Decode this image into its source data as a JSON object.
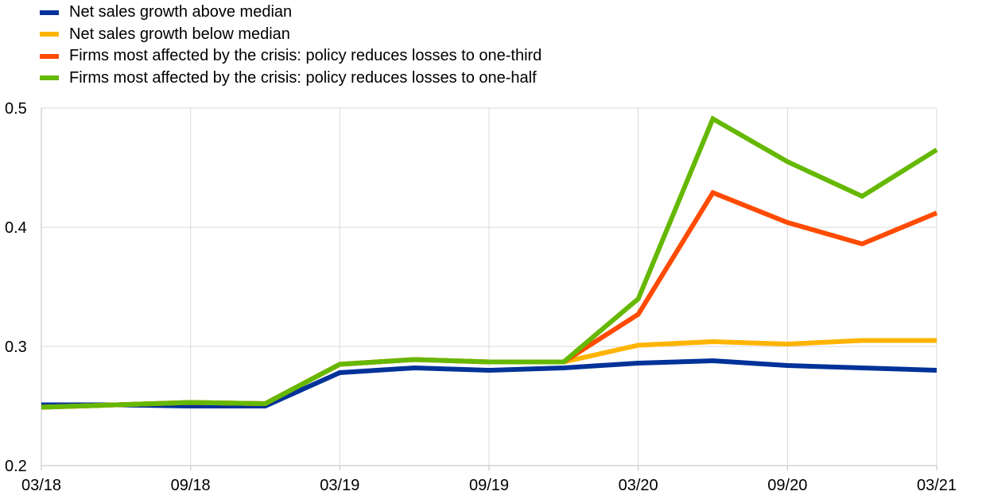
{
  "chart_data": {
    "type": "line",
    "title": "",
    "xlabel": "",
    "ylabel": "",
    "x": [
      "03/18",
      "06/18",
      "09/18",
      "12/18",
      "03/19",
      "06/19",
      "09/19",
      "12/19",
      "03/20",
      "06/20",
      "09/20",
      "12/20",
      "03/21"
    ],
    "x_tick_labels": [
      "03/18",
      "09/18",
      "03/19",
      "09/19",
      "03/20",
      "09/20",
      "03/21"
    ],
    "ylim": [
      0.2,
      0.5
    ],
    "y_ticks": [
      0.2,
      0.3,
      0.4,
      0.5
    ],
    "y_tick_labels": [
      "0.2",
      "0.3",
      "0.4",
      "0.5"
    ],
    "grid": "vertical and horizontal",
    "legend_position": "top-left",
    "series": [
      {
        "name": "Net sales growth above median",
        "color": "#003299",
        "values": [
          0.251,
          0.251,
          0.25,
          0.25,
          0.278,
          0.282,
          0.28,
          0.282,
          0.286,
          0.288,
          0.284,
          0.282,
          0.28
        ]
      },
      {
        "name": "Net sales growth below median",
        "color": "#FFB400",
        "values": [
          0.249,
          0.251,
          0.253,
          0.252,
          0.285,
          0.289,
          0.287,
          0.287,
          0.301,
          0.304,
          0.302,
          0.305,
          0.305
        ]
      },
      {
        "name": "Firms most affected by the crisis: policy reduces losses to one-third",
        "color": "#FF4B00",
        "values": [
          0.249,
          0.251,
          0.253,
          0.252,
          0.285,
          0.289,
          0.287,
          0.287,
          0.327,
          0.429,
          0.404,
          0.386,
          0.412
        ]
      },
      {
        "name": "Firms most affected by the crisis: policy reduces losses to one-half",
        "color": "#65B800",
        "values": [
          0.249,
          0.251,
          0.253,
          0.252,
          0.285,
          0.289,
          0.287,
          0.287,
          0.34,
          0.491,
          0.455,
          0.426,
          0.465
        ]
      }
    ]
  }
}
